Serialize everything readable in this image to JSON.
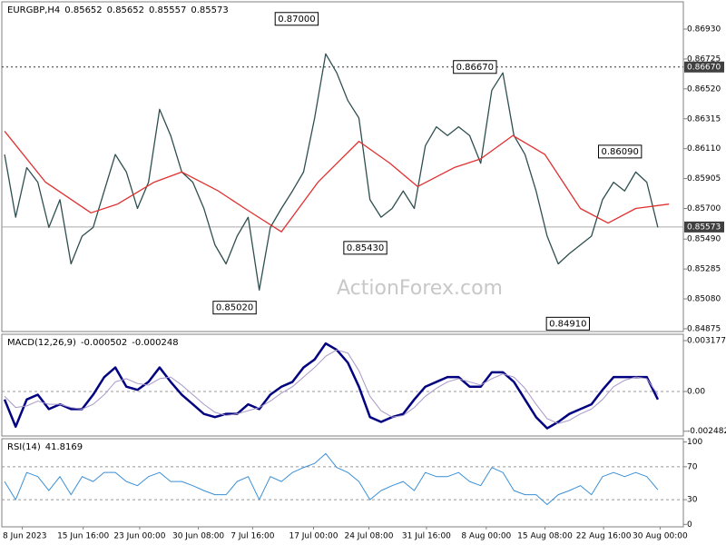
{
  "chart_data": [
    {
      "type": "line",
      "title": "EURGBP,H4",
      "ohlc": [
        0.85652,
        0.85652,
        0.85557,
        0.85573
      ],
      "watermark": "ActionForex.com",
      "xlim": [
        -0.25,
        61.3
      ],
      "ylim": [
        0.84856,
        0.87117
      ],
      "yticks": [
        {
          "value": 0.8693,
          "label": "0.86930"
        },
        {
          "value": 0.86725,
          "label": "0.86725"
        },
        {
          "value": 0.8652,
          "label": "0.86520"
        },
        {
          "value": 0.86315,
          "label": "0.86315"
        },
        {
          "value": 0.8611,
          "label": "0.86110"
        },
        {
          "value": 0.85905,
          "label": "0.85905"
        },
        {
          "value": 0.857,
          "label": "0.85700"
        },
        {
          "value": 0.8549,
          "label": "0.85490"
        },
        {
          "value": 0.85285,
          "label": "0.85285"
        },
        {
          "value": 0.8508,
          "label": "0.85080"
        },
        {
          "value": 0.84875,
          "label": "0.84875"
        }
      ],
      "x": [
        0,
        1,
        2,
        3,
        4,
        5,
        6,
        7,
        8,
        9,
        10,
        11,
        12,
        13,
        14,
        15,
        16,
        17,
        18,
        19,
        20,
        21,
        22,
        23,
        24,
        25,
        26,
        27,
        28,
        29,
        30,
        31,
        32,
        33,
        34,
        35,
        36,
        37,
        38,
        39,
        40,
        41,
        42,
        43,
        44,
        45,
        46,
        47,
        48,
        49,
        50,
        51,
        52,
        53,
        54,
        55,
        56,
        57,
        58,
        59
      ],
      "series": [
        {
          "color": "#2f4f4f",
          "values": [
            0.8607,
            0.8564,
            0.8598,
            0.8588,
            0.8557,
            0.8576,
            0.8532,
            0.8551,
            0.8557,
            0.8582,
            0.8607,
            0.8595,
            0.857,
            0.8588,
            0.8638,
            0.862,
            0.8595,
            0.8588,
            0.857,
            0.8545,
            0.8532,
            0.8551,
            0.8564,
            0.8514,
            0.8557,
            0.857,
            0.8582,
            0.8595,
            0.8632,
            0.8676,
            0.8663,
            0.8644,
            0.8632,
            0.8576,
            0.8564,
            0.857,
            0.8582,
            0.857,
            0.8613,
            0.8626,
            0.862,
            0.8626,
            0.862,
            0.8601,
            0.8651,
            0.8663,
            0.862,
            0.8607,
            0.8582,
            0.8551,
            0.8532,
            0.8539,
            0.8545,
            0.8551,
            0.8576,
            0.8588,
            0.8582,
            0.8595,
            0.8588,
            0.8557
          ]
        },
        {
          "color": "#e03030",
          "x": [
            0,
            3.7,
            7.8,
            10.2,
            13.5,
            16,
            19.3,
            21.7,
            25,
            28.3,
            32,
            34.8,
            37.3,
            40.6,
            43,
            45.9,
            48.8,
            52,
            54.5,
            57,
            60
          ],
          "values": [
            0.8623,
            0.8588,
            0.8567,
            0.8573,
            0.8588,
            0.8595,
            0.8582,
            0.857,
            0.8554,
            0.8588,
            0.8616,
            0.8601,
            0.8585,
            0.8598,
            0.8604,
            0.862,
            0.8607,
            0.857,
            0.856,
            0.857,
            0.8573
          ]
        }
      ],
      "levels": [
        {
          "value": 0.8667,
          "label": "0.86670",
          "style": "dotted"
        },
        {
          "value": 0.85573,
          "label": "0.85573",
          "style": "solid"
        }
      ],
      "annotations": [
        {
          "x": 28.4,
          "value": 0.87,
          "label": "0.87000"
        },
        {
          "x": 44.5,
          "value": 0.8667,
          "label": "0.86670"
        },
        {
          "x": 57.6,
          "value": 0.8609,
          "label": "0.86090"
        },
        {
          "x": 34.6,
          "value": 0.8543,
          "label": "0.85430"
        },
        {
          "x": 22.8,
          "value": 0.8502,
          "label": "0.85020"
        },
        {
          "x": 52.9,
          "value": 0.8491,
          "label": "0.84910"
        }
      ]
    },
    {
      "type": "line",
      "title": "MACD(12,26,9)",
      "indicator_values": [
        -0.000502,
        -0.000248
      ],
      "xlim": [
        -0.25,
        61.3
      ],
      "ylim": [
        -0.00278,
        0.003574
      ],
      "yticks": [
        0.003177,
        {
          "value": 0,
          "label": "0.00"
        },
        -0.002482
      ],
      "ref_lines": [
        0
      ],
      "x": [
        0,
        1,
        2,
        3,
        4,
        5,
        6,
        7,
        8,
        9,
        10,
        11,
        12,
        13,
        14,
        15,
        16,
        17,
        18,
        19,
        20,
        21,
        22,
        23,
        24,
        25,
        26,
        27,
        28,
        29,
        30,
        31,
        32,
        33,
        34,
        35,
        36,
        37,
        38,
        39,
        40,
        41,
        42,
        43,
        44,
        45,
        46,
        47,
        48,
        49,
        50,
        51,
        52,
        53,
        54,
        55,
        56,
        57,
        58,
        59
      ],
      "series": [
        {
          "color": "#000080",
          "width": 2.5,
          "values": [
            -0.0005,
            -0.0022,
            -0.0005,
            -0.0002,
            -0.0011,
            -0.0008,
            -0.0011,
            -0.0011,
            -0.0002,
            0.0009,
            0.0015,
            0.0003,
            0.0001,
            0.0006,
            0.0015,
            0.0006,
            -0.0002,
            -0.0008,
            -0.0014,
            -0.0016,
            -0.0014,
            -0.0014,
            -0.0008,
            -0.0011,
            -0.0002,
            0.0003,
            0.0006,
            0.0015,
            0.002,
            0.003,
            0.0026,
            0.0018,
            0.0003,
            -0.0016,
            -0.0019,
            -0.0016,
            -0.0014,
            -0.0005,
            0.0003,
            0.0006,
            0.0009,
            0.0009,
            0.0003,
            0.0003,
            0.0012,
            0.0012,
            0.0006,
            -0.0005,
            -0.0016,
            -0.0023,
            -0.0019,
            -0.0014,
            -0.0011,
            -0.0008,
            0.0001,
            0.0009,
            0.0009,
            0.0009,
            0.0009,
            -0.0005
          ]
        },
        {
          "color": "#a898c8",
          "width": 1,
          "values": [
            -0.0003,
            -0.001,
            -0.0009,
            -0.0006,
            -0.0008,
            -0.0008,
            -0.001,
            -0.0011,
            -0.0008,
            -0.0002,
            0.0006,
            0.0008,
            0.0005,
            0.0004,
            0.0008,
            0.0009,
            0.0004,
            -0.0002,
            -0.0008,
            -0.0013,
            -0.0015,
            -0.0014,
            -0.0012,
            -0.001,
            -0.0006,
            -0.0001,
            0.0003,
            0.0009,
            0.0015,
            0.0022,
            0.0026,
            0.0024,
            0.0013,
            -0.0003,
            -0.0012,
            -0.0016,
            -0.0015,
            -0.001,
            -0.0003,
            0.0002,
            0.0006,
            0.0008,
            0.0006,
            0.0004,
            0.0008,
            0.0011,
            0.0009,
            0.0002,
            -0.0008,
            -0.0017,
            -0.002,
            -0.0018,
            -0.0014,
            -0.0011,
            -0.0005,
            0.0003,
            0.0007,
            0.0009,
            0.0008,
            -0.0002
          ]
        }
      ]
    },
    {
      "type": "line",
      "title": "RSI(14)",
      "indicator_values": [
        41.8169
      ],
      "xlim": [
        -0.25,
        61.3
      ],
      "ylim": [
        -3,
        104
      ],
      "yticks": [
        100,
        70,
        30,
        0
      ],
      "ref_lines": [
        70,
        30
      ],
      "xticks": [
        {
          "value": 1.6,
          "label": "8 Jun 2023"
        },
        {
          "value": 7.1,
          "label": "15 Jun 16:00"
        },
        {
          "value": 12.2,
          "label": "23 Jun 00:00"
        },
        {
          "value": 17.5,
          "label": "30 Jun 08:00"
        },
        {
          "value": 22.4,
          "label": "7 Jul 16:00"
        },
        {
          "value": 27.9,
          "label": "17 Jul 00:00"
        },
        {
          "value": 32.9,
          "label": "24 Jul 08:00"
        },
        {
          "value": 38.1,
          "label": "31 Jul 16:00"
        },
        {
          "value": 43.5,
          "label": "8 Aug 00:00"
        },
        {
          "value": 48.8,
          "label": "15 Aug 08:00"
        },
        {
          "value": 54.1,
          "label": "22 Aug 16:00"
        },
        {
          "value": 59.2,
          "label": "30 Aug 00:00"
        }
      ],
      "x": [
        0,
        1,
        2,
        3,
        4,
        5,
        6,
        7,
        8,
        9,
        10,
        11,
        12,
        13,
        14,
        15,
        16,
        17,
        18,
        19,
        20,
        21,
        22,
        23,
        24,
        25,
        26,
        27,
        28,
        29,
        30,
        31,
        32,
        33,
        34,
        35,
        36,
        37,
        38,
        39,
        40,
        41,
        42,
        43,
        44,
        45,
        46,
        47,
        48,
        49,
        50,
        51,
        52,
        53,
        54,
        55,
        56,
        57,
        58,
        59
      ],
      "series": [
        {
          "color": "#3a8fd6",
          "width": 1,
          "values": [
            52,
            30,
            63,
            58,
            41,
            58,
            36,
            58,
            52,
            63,
            63,
            52,
            47,
            58,
            63,
            52,
            52,
            47,
            41,
            36,
            36,
            52,
            58,
            30,
            58,
            52,
            63,
            69,
            74,
            86,
            69,
            63,
            52,
            30,
            41,
            47,
            52,
            41,
            63,
            58,
            58,
            63,
            52,
            47,
            69,
            63,
            41,
            36,
            36,
            24,
            36,
            41,
            47,
            36,
            58,
            63,
            58,
            63,
            58,
            42
          ]
        }
      ]
    }
  ]
}
